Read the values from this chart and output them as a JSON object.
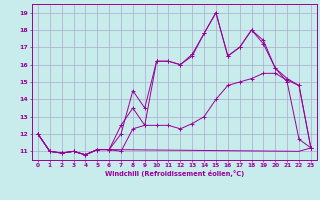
{
  "xlabel": "Windchill (Refroidissement éolien,°C)",
  "bg_color": "#c8ecec",
  "line_color": "#990099",
  "grid_color": "#aaaacc",
  "xtick_labels": [
    "0",
    "1",
    "2",
    "3",
    "4",
    "5",
    "6",
    "7",
    "8",
    "9",
    "10",
    "11",
    "12",
    "13",
    "14",
    "15",
    "16",
    "17",
    "18",
    "19",
    "20",
    "21",
    "22",
    "23"
  ],
  "ytick_labels": [
    11,
    12,
    13,
    14,
    15,
    16,
    17,
    18,
    19
  ],
  "series1_x": [
    0,
    1,
    2,
    3,
    4,
    5,
    6,
    7,
    8,
    9,
    10,
    11,
    12,
    13,
    14,
    15,
    16,
    17,
    18,
    19,
    20,
    21,
    22,
    23
  ],
  "series1_y": [
    12.0,
    11.0,
    10.9,
    11.0,
    10.8,
    11.1,
    11.1,
    11.0,
    12.3,
    12.5,
    12.5,
    12.5,
    12.3,
    12.6,
    13.0,
    14.0,
    14.8,
    15.0,
    15.2,
    15.5,
    15.5,
    15.1,
    14.8,
    11.2
  ],
  "series2_x": [
    0,
    1,
    2,
    3,
    4,
    5,
    6,
    7,
    8,
    9,
    10,
    11,
    12,
    13,
    14,
    15,
    16,
    17,
    18,
    19,
    20,
    21,
    22,
    23
  ],
  "series2_y": [
    12.0,
    11.0,
    10.9,
    11.0,
    10.8,
    11.1,
    11.1,
    12.5,
    13.5,
    12.5,
    16.2,
    16.2,
    16.0,
    16.5,
    17.8,
    19.0,
    16.5,
    17.0,
    18.0,
    17.2,
    15.8,
    15.0,
    11.7,
    11.2
  ],
  "series3_x": [
    0,
    1,
    2,
    3,
    4,
    5,
    6,
    22,
    23
  ],
  "series3_y": [
    12.0,
    11.0,
    10.9,
    11.0,
    10.8,
    11.1,
    11.1,
    11.0,
    11.2
  ],
  "series4_x": [
    0,
    1,
    2,
    3,
    4,
    5,
    6,
    7,
    8,
    9,
    10,
    11,
    12,
    13,
    14,
    15,
    16,
    17,
    18,
    19,
    20,
    21,
    22,
    23
  ],
  "series4_y": [
    12.0,
    11.0,
    10.9,
    11.0,
    10.8,
    11.1,
    11.1,
    12.0,
    14.5,
    13.5,
    16.2,
    16.2,
    16.0,
    16.6,
    17.8,
    19.0,
    16.5,
    17.0,
    18.0,
    17.4,
    15.8,
    15.2,
    14.8,
    11.2
  ],
  "ylim": [
    10.5,
    19.5
  ],
  "xlim": [
    -0.5,
    23.5
  ]
}
